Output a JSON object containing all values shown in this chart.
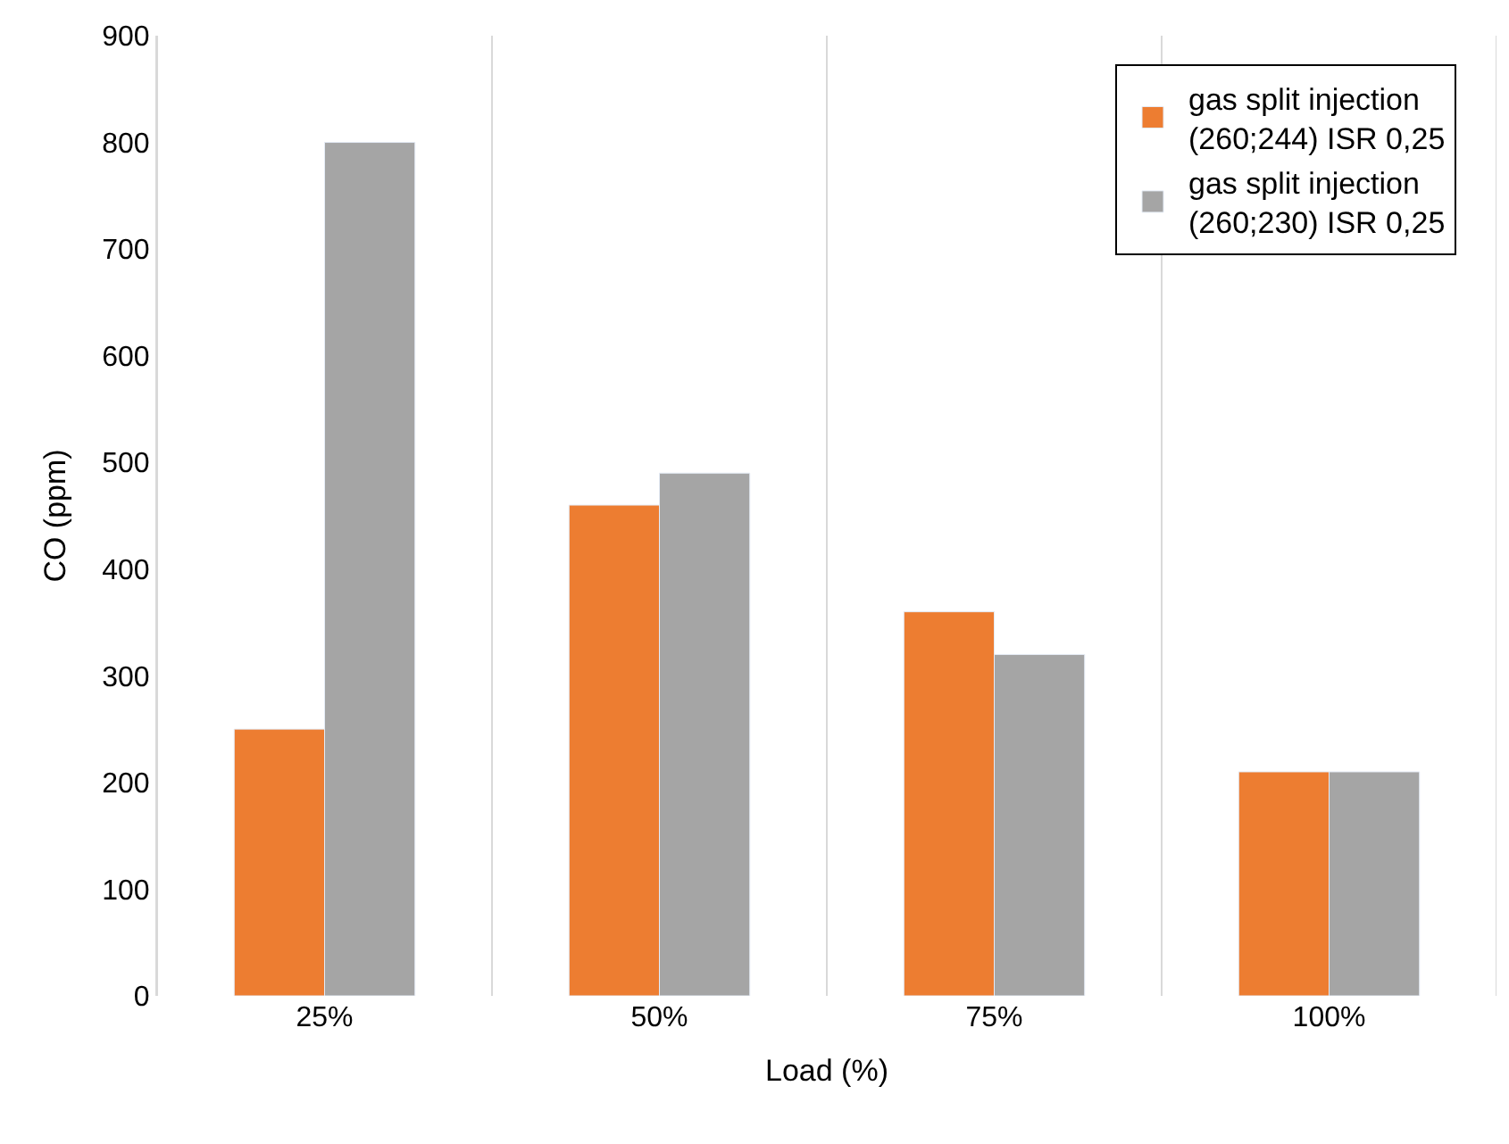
{
  "chart_data": {
    "type": "bar",
    "xlabel": "Load (%)",
    "ylabel": "CO (ppm)",
    "categories": [
      "25%",
      "50%",
      "75%",
      "100%"
    ],
    "series": [
      {
        "name": "gas split injection (260;244) ISR 0,25",
        "color": "#ed7d31",
        "values": [
          250,
          460,
          360,
          210
        ]
      },
      {
        "name": "gas split injection (260;230) ISR 0,25",
        "color": "#a5a5a5",
        "values": [
          800,
          490,
          320,
          210
        ]
      }
    ],
    "ylim": [
      0,
      900
    ],
    "yticks": [
      0,
      100,
      200,
      300,
      400,
      500,
      600,
      700,
      800,
      900
    ],
    "grid": "x",
    "legend": "top right"
  }
}
